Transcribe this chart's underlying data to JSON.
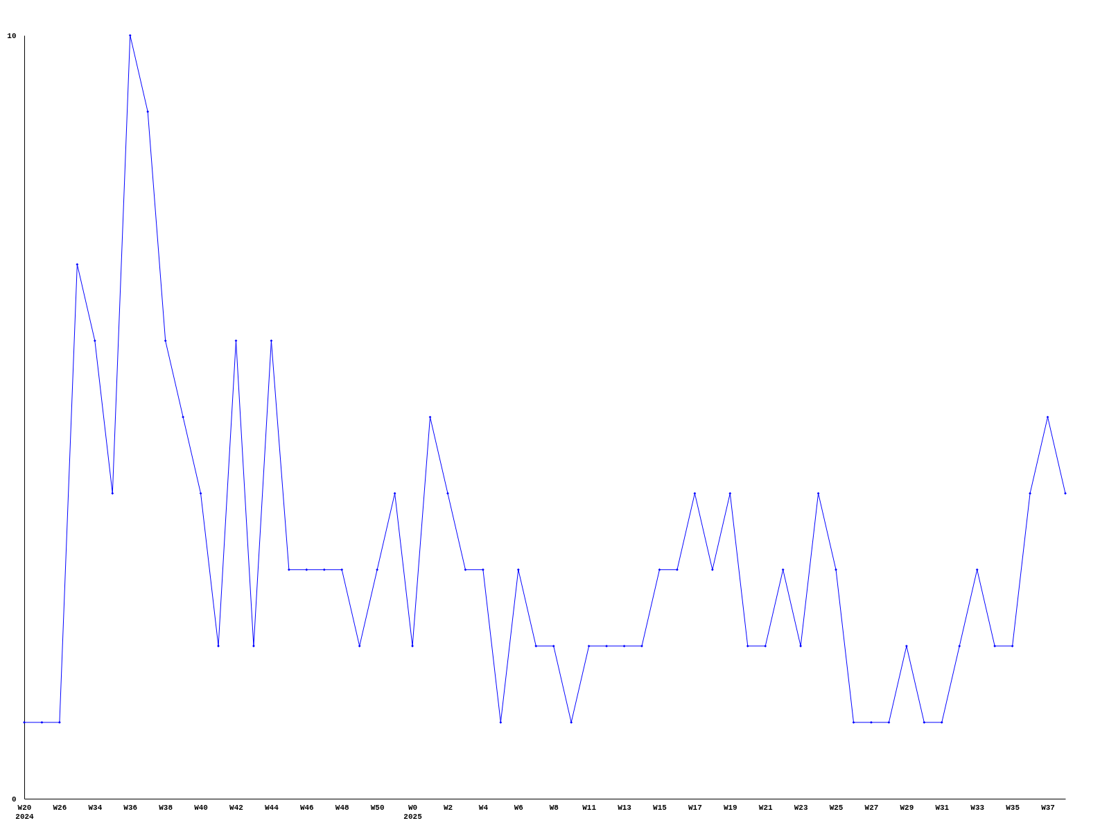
{
  "chart_data": {
    "type": "line",
    "categories": [
      "W20\n2024",
      null,
      "W26",
      null,
      "W34",
      null,
      "W36",
      null,
      "W38",
      null,
      "W40",
      null,
      "W42",
      null,
      "W44",
      null,
      "W46",
      null,
      "W48",
      null,
      "W50",
      null,
      "W0\n2025",
      null,
      "W2",
      null,
      "W4",
      null,
      "W6",
      null,
      "W8",
      null,
      "W11",
      null,
      "W13",
      null,
      "W15",
      null,
      "W17",
      null,
      "W19",
      null,
      "W21",
      null,
      "W23",
      null,
      "W25",
      null,
      "W27",
      null,
      "W29",
      null,
      "W31",
      null,
      "W33",
      null,
      "W35",
      null,
      "W37",
      null
    ],
    "series": [
      {
        "color": "#0000ff",
        "values": [
          1,
          1,
          1,
          7,
          6,
          4,
          10,
          9,
          6,
          5,
          4,
          2,
          6,
          2,
          6,
          3,
          3,
          3,
          3,
          2,
          3,
          4,
          2,
          5,
          4,
          3,
          3,
          1,
          3,
          2,
          2,
          1,
          2,
          2,
          2,
          2,
          3,
          3,
          4,
          3,
          4,
          2,
          2,
          3,
          2,
          4,
          3,
          1,
          1,
          1,
          2,
          1,
          1,
          2,
          3,
          2,
          2,
          4,
          5,
          4
        ]
      }
    ],
    "ylim": [
      0,
      10
    ],
    "yticks": [
      0,
      10
    ],
    "grid": false,
    "legend": false,
    "marker": "diamond",
    "line_style": "solid"
  }
}
